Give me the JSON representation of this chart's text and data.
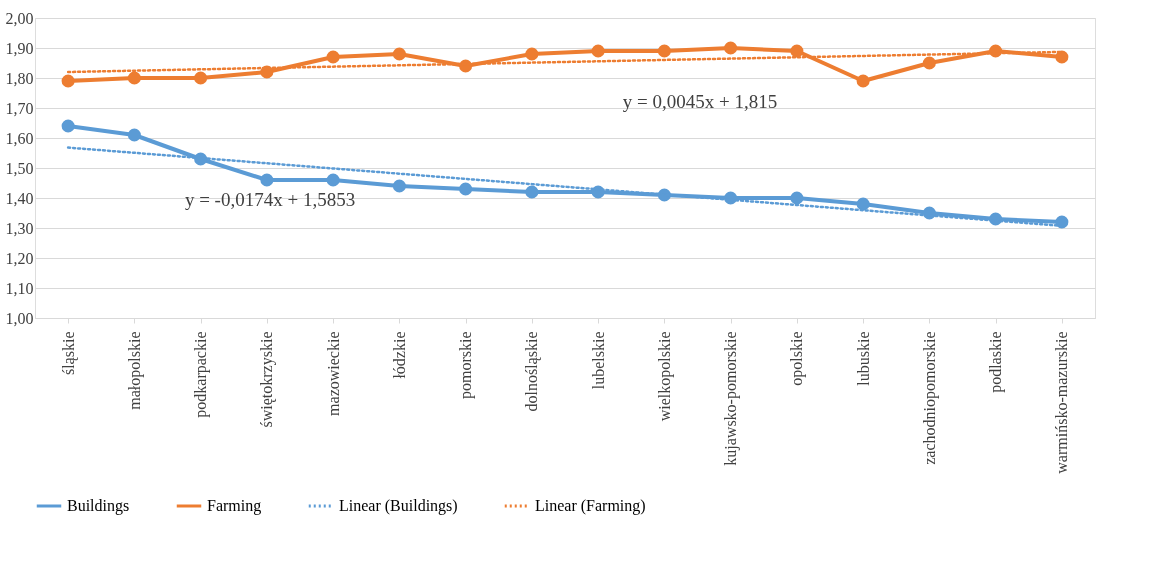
{
  "chart_data": {
    "type": "line",
    "categories": [
      "śląskie",
      "małopolskie",
      "podkarpackie",
      "świętokrzyskie",
      "mazowieckie",
      "łódzkie",
      "pomorskie",
      "dolnośląskie",
      "lubelskie",
      "wielkopolskie",
      "kujawsko-pomorskie",
      "opolskie",
      "lubuskie",
      "zachodniopomorskie",
      "podlaskie",
      "warmińsko-mazurskie"
    ],
    "series": [
      {
        "name": "Buildings",
        "color": "#5b9bd5",
        "marker": "circle",
        "line_style": "solid",
        "values": [
          1.64,
          1.61,
          1.53,
          1.46,
          1.46,
          1.44,
          1.43,
          1.42,
          1.42,
          1.41,
          1.4,
          1.4,
          1.38,
          1.35,
          1.33,
          1.32
        ]
      },
      {
        "name": "Farming",
        "color": "#ed7d31",
        "marker": "circle",
        "line_style": "solid",
        "values": [
          1.79,
          1.8,
          1.8,
          1.82,
          1.87,
          1.88,
          1.84,
          1.88,
          1.89,
          1.89,
          1.9,
          1.89,
          1.79,
          1.85,
          1.89,
          1.87
        ]
      },
      {
        "name": "Linear (Buildings)",
        "color": "#5b9bd5",
        "type": "line",
        "marker": "none",
        "line_style": "dotted",
        "x": [
          "śląskie",
          "warmińsko-mazurskie"
        ],
        "values": [
          1.568,
          1.307
        ]
      },
      {
        "name": "Linear (Farming)",
        "color": "#ed7d31",
        "type": "line",
        "marker": "none",
        "line_style": "dotted",
        "x": [
          "śląskie",
          "warmińsko-mazurskie"
        ],
        "values": [
          1.82,
          1.887
        ]
      }
    ],
    "ylim": [
      1.0,
      2.0
    ],
    "yticks": [
      {
        "value": 1.0,
        "label": "1,00"
      },
      {
        "value": 1.1,
        "label": "1,10"
      },
      {
        "value": 1.2,
        "label": "1,20"
      },
      {
        "value": 1.3,
        "label": "1,30"
      },
      {
        "value": 1.4,
        "label": "1,40"
      },
      {
        "value": 1.5,
        "label": "1,50"
      },
      {
        "value": 1.6,
        "label": "1,60"
      },
      {
        "value": 1.7,
        "label": "1,70"
      },
      {
        "value": 1.8,
        "label": "1,80"
      },
      {
        "value": 1.9,
        "label": "1,90"
      },
      {
        "value": 2.0,
        "label": "2,00"
      }
    ],
    "annotations": [
      "y = -0,0174x + 1,5853",
      "y = 0,0045x + 1,815"
    ],
    "grid": "y",
    "legend": "bottom"
  }
}
